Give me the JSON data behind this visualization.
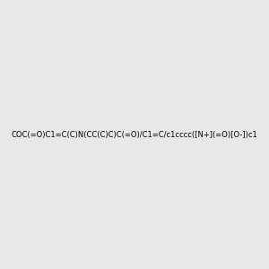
{
  "smiles": "COC(=O)C1=C(C)N(CC(C)C)C(=O)/C1=C/c1cccc([N+](=O)[O-])c1",
  "background_color": "#e8e8e8",
  "fig_width": 3.0,
  "fig_height": 3.0,
  "dpi": 100
}
